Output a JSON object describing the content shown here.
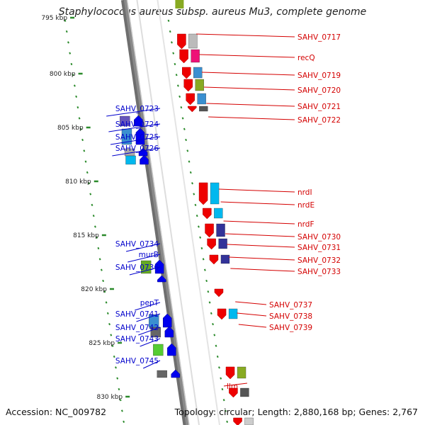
{
  "title": "Staphylococcus aureus subsp. aureus Mu3, complete genome",
  "accession": "Accession: NC_009782",
  "topology": "Topology: circular; Length: 2,880,168 bp; Genes: 2,767",
  "colors": {
    "backbone": "#8a8a8a",
    "tick": "#2a8a2a",
    "forward_label": "#d40000",
    "reverse_label": "#0000cc",
    "forward_gene": "#ee0000",
    "reverse_gene": "#0000ee"
  },
  "ruler": [
    "795 kbp",
    "800 kbp",
    "805 kbp",
    "810 kbp",
    "815 kbp",
    "820 kbp",
    "825 kbp",
    "830 kbp"
  ],
  "forward_labels": [
    "SAHV_0717",
    "recQ",
    "SAHV_0719",
    "SAHV_0720",
    "SAHV_0721",
    "SAHV_0722",
    "nrdI",
    "nrdE",
    "nrdF",
    "SAHV_0730",
    "SAHV_0731",
    "SAHV_0732",
    "SAHV_0733",
    "SAHV_0737",
    "SAHV_0738",
    "SAHV_0739",
    "llm"
  ],
  "reverse_labels": [
    "SAHV_0723",
    "SAHV_0724",
    "SAHV_0725",
    "SAHV_0726",
    "SAHV_0734",
    "murB",
    "SAHV_0736",
    "pepT",
    "SAHV_0741",
    "SAHV_0742",
    "SAHV_0743",
    "SAHV_0745"
  ]
}
